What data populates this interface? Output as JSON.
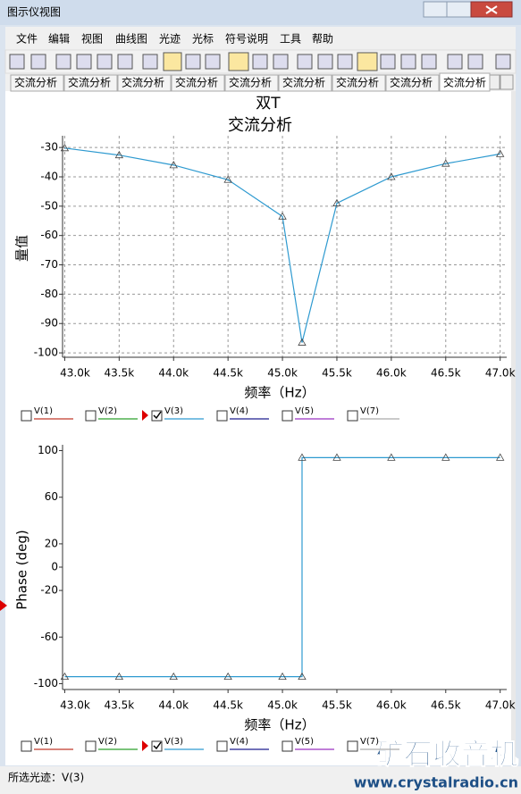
{
  "window": {
    "title": "图示仪视图"
  },
  "menu": [
    "文件",
    "编辑",
    "视图",
    "曲线图",
    "光迹",
    "光标",
    "符号说明",
    "工具",
    "帮助"
  ],
  "tabs": [
    "交流分析",
    "交流分析",
    "交流分析",
    "交流分析",
    "交流分析",
    "交流分析",
    "交流分析",
    "交流分析",
    "交流分析"
  ],
  "chart_data": [
    {
      "type": "line",
      "title": "双T",
      "subtitle": "交流分析",
      "x_label": "频率（Hz）",
      "y_label": "量值",
      "x": [
        43000,
        43500,
        44000,
        44500,
        45000,
        45180,
        45500,
        46000,
        46500,
        47000
      ],
      "series": [
        {
          "name": "V(3)",
          "color": "#2e9ad0",
          "values": [
            -30.2,
            -32.6,
            -36,
            -41,
            -53.5,
            -96.5,
            -49,
            -40,
            -35.5,
            -32.2
          ]
        }
      ],
      "xlim": [
        42980,
        47060
      ],
      "ylim": [
        -101.5,
        -26
      ],
      "xticks": [
        {
          "value": 43000,
          "label": "43.0k"
        },
        {
          "value": 43500,
          "label": "43.5k"
        },
        {
          "value": 44000,
          "label": "44.0k"
        },
        {
          "value": 44500,
          "label": "44.5k"
        },
        {
          "value": 45000,
          "label": "45.0k"
        },
        {
          "value": 45500,
          "label": "45.5k"
        },
        {
          "value": 46000,
          "label": "46.0k"
        },
        {
          "value": 46500,
          "label": "46.5k"
        },
        {
          "value": 47000,
          "label": "47.0k"
        }
      ],
      "yticks": [
        -30,
        -40,
        -50,
        -60,
        -70,
        -80,
        -90,
        -100
      ],
      "grid": true,
      "legend": [
        {
          "name": "V(1)",
          "color": "#c0392b",
          "checked": false
        },
        {
          "name": "V(2)",
          "color": "#2ca02c",
          "checked": false
        },
        {
          "name": "V(3)",
          "color": "#2e9ad0",
          "checked": true
        },
        {
          "name": "V(4)",
          "color": "#1f1f8f",
          "checked": false
        },
        {
          "name": "V(5)",
          "color": "#9b30c0",
          "checked": false
        },
        {
          "name": "V(7)",
          "color": "#aaaaaa",
          "checked": false
        }
      ]
    },
    {
      "type": "line",
      "x_label": "频率（Hz）",
      "y_label": "Phase (deg)",
      "x": [
        43000,
        43500,
        44000,
        44500,
        45000,
        45180,
        45180,
        45500,
        46000,
        46500,
        47000
      ],
      "series": [
        {
          "name": "V(3)",
          "color": "#2e9ad0",
          "values": [
            -94,
            -94,
            -94,
            -94,
            -94,
            -94,
            94,
            94,
            94,
            94,
            94
          ]
        }
      ],
      "xlim": [
        42980,
        47060
      ],
      "ylim": [
        -105,
        105
      ],
      "xticks": [
        {
          "value": 43000,
          "label": "43.0k"
        },
        {
          "value": 43500,
          "label": "43.5k"
        },
        {
          "value": 44000,
          "label": "44.0k"
        },
        {
          "value": 44500,
          "label": "44.5k"
        },
        {
          "value": 45000,
          "label": "45.0k"
        },
        {
          "value": 45500,
          "label": "45.5k"
        },
        {
          "value": 46000,
          "label": "46.0k"
        },
        {
          "value": 46500,
          "label": "46.5k"
        },
        {
          "value": 47000,
          "label": "47.0k"
        }
      ],
      "yticks": [
        100,
        60,
        20,
        0,
        -20,
        -60,
        -100
      ],
      "grid": false,
      "legend": [
        {
          "name": "V(1)",
          "color": "#c0392b",
          "checked": false
        },
        {
          "name": "V(2)",
          "color": "#2ca02c",
          "checked": false
        },
        {
          "name": "V(3)",
          "color": "#2e9ad0",
          "checked": true
        },
        {
          "name": "V(4)",
          "color": "#1f1f8f",
          "checked": false
        },
        {
          "name": "V(5)",
          "color": "#9b30c0",
          "checked": false
        },
        {
          "name": "V(7)",
          "color": "#aaaaaa",
          "checked": false
        }
      ]
    }
  ],
  "status": "所选光迹：V(3)",
  "watermark": {
    "name": "矿石收音机",
    "url": "www.crystalradio.cn"
  }
}
